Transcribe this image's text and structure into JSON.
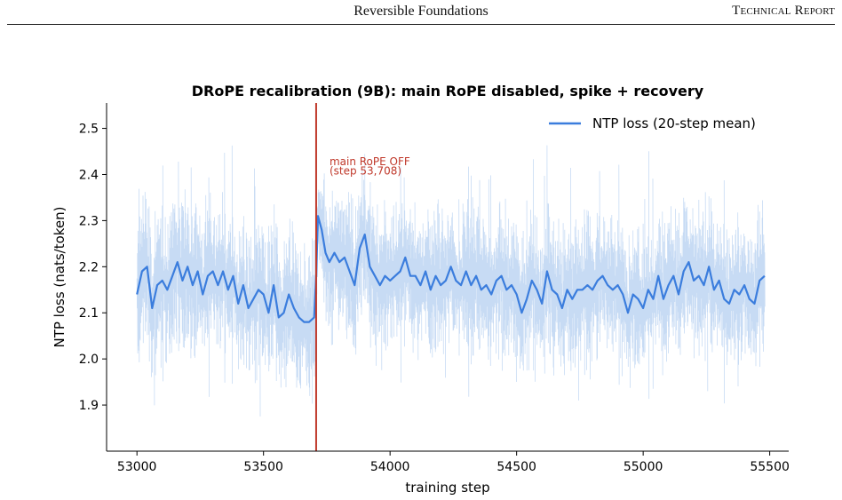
{
  "header": {
    "title": "Reversible Foundations",
    "label": "Technical Report"
  },
  "chart_data": {
    "type": "line",
    "title": "DRoPE recalibration (9B): main RoPE disabled, spike + recovery",
    "xlabel": "training step",
    "ylabel": "NTP loss (nats/token)",
    "xlim": [
      52880,
      55575
    ],
    "ylim": [
      1.8,
      2.555
    ],
    "xticks": [
      53000,
      53500,
      54000,
      54500,
      55000,
      55500
    ],
    "xtick_labels": [
      "53000",
      "53500",
      "54000",
      "54500",
      "55000",
      "55500"
    ],
    "yticks": [
      1.9,
      2.0,
      2.1,
      2.2,
      2.3,
      2.4,
      2.5
    ],
    "ytick_labels": [
      "1.9",
      "2.0",
      "2.1",
      "2.2",
      "2.3",
      "2.4",
      "2.5"
    ],
    "legend_position": "top-right",
    "colors": {
      "mean": "#3b7ddd",
      "raw": "#c7dbf4",
      "event": "#c0392b"
    },
    "event": {
      "x": 53708,
      "label_line1": "main RoPE OFF",
      "label_line2": "(step 53,708)"
    },
    "series": [
      {
        "name": "NTP loss (20-step mean)",
        "x": [
          53000,
          53020,
          53040,
          53060,
          53080,
          53100,
          53120,
          53140,
          53160,
          53180,
          53200,
          53220,
          53240,
          53260,
          53280,
          53300,
          53320,
          53340,
          53360,
          53380,
          53400,
          53420,
          53440,
          53460,
          53480,
          53500,
          53520,
          53540,
          53560,
          53580,
          53600,
          53620,
          53640,
          53660,
          53680,
          53700,
          53708,
          53715,
          53730,
          53745,
          53760,
          53780,
          53800,
          53820,
          53840,
          53860,
          53880,
          53900,
          53920,
          53940,
          53960,
          53980,
          54000,
          54020,
          54040,
          54060,
          54080,
          54100,
          54120,
          54140,
          54160,
          54180,
          54200,
          54220,
          54240,
          54260,
          54280,
          54300,
          54320,
          54340,
          54360,
          54380,
          54400,
          54420,
          54440,
          54460,
          54480,
          54500,
          54520,
          54540,
          54560,
          54580,
          54600,
          54620,
          54640,
          54660,
          54680,
          54700,
          54720,
          54740,
          54760,
          54780,
          54800,
          54820,
          54840,
          54860,
          54880,
          54900,
          54920,
          54940,
          54960,
          54980,
          55000,
          55020,
          55040,
          55060,
          55080,
          55100,
          55120,
          55140,
          55160,
          55180,
          55200,
          55220,
          55240,
          55260,
          55280,
          55300,
          55320,
          55340,
          55360,
          55380,
          55400,
          55420,
          55440,
          55460,
          55480
        ],
        "values": [
          2.14,
          2.19,
          2.2,
          2.11,
          2.16,
          2.17,
          2.15,
          2.18,
          2.21,
          2.17,
          2.2,
          2.16,
          2.19,
          2.14,
          2.18,
          2.19,
          2.16,
          2.19,
          2.15,
          2.18,
          2.12,
          2.16,
          2.11,
          2.13,
          2.15,
          2.14,
          2.1,
          2.16,
          2.09,
          2.1,
          2.14,
          2.11,
          2.09,
          2.08,
          2.08,
          2.09,
          2.18,
          2.31,
          2.28,
          2.23,
          2.21,
          2.23,
          2.21,
          2.22,
          2.19,
          2.16,
          2.24,
          2.27,
          2.2,
          2.18,
          2.16,
          2.18,
          2.17,
          2.18,
          2.19,
          2.22,
          2.18,
          2.18,
          2.16,
          2.19,
          2.15,
          2.18,
          2.16,
          2.17,
          2.2,
          2.17,
          2.16,
          2.19,
          2.16,
          2.18,
          2.15,
          2.16,
          2.14,
          2.17,
          2.18,
          2.15,
          2.16,
          2.14,
          2.1,
          2.13,
          2.17,
          2.15,
          2.12,
          2.19,
          2.15,
          2.14,
          2.11,
          2.15,
          2.13,
          2.15,
          2.15,
          2.16,
          2.15,
          2.17,
          2.18,
          2.16,
          2.15,
          2.16,
          2.14,
          2.1,
          2.14,
          2.13,
          2.11,
          2.15,
          2.13,
          2.18,
          2.13,
          2.16,
          2.18,
          2.14,
          2.19,
          2.21,
          2.17,
          2.18,
          2.16,
          2.2,
          2.15,
          2.17,
          2.13,
          2.12,
          2.15,
          2.14,
          2.16,
          2.13,
          2.12,
          2.17,
          2.18
        ]
      }
    ]
  }
}
